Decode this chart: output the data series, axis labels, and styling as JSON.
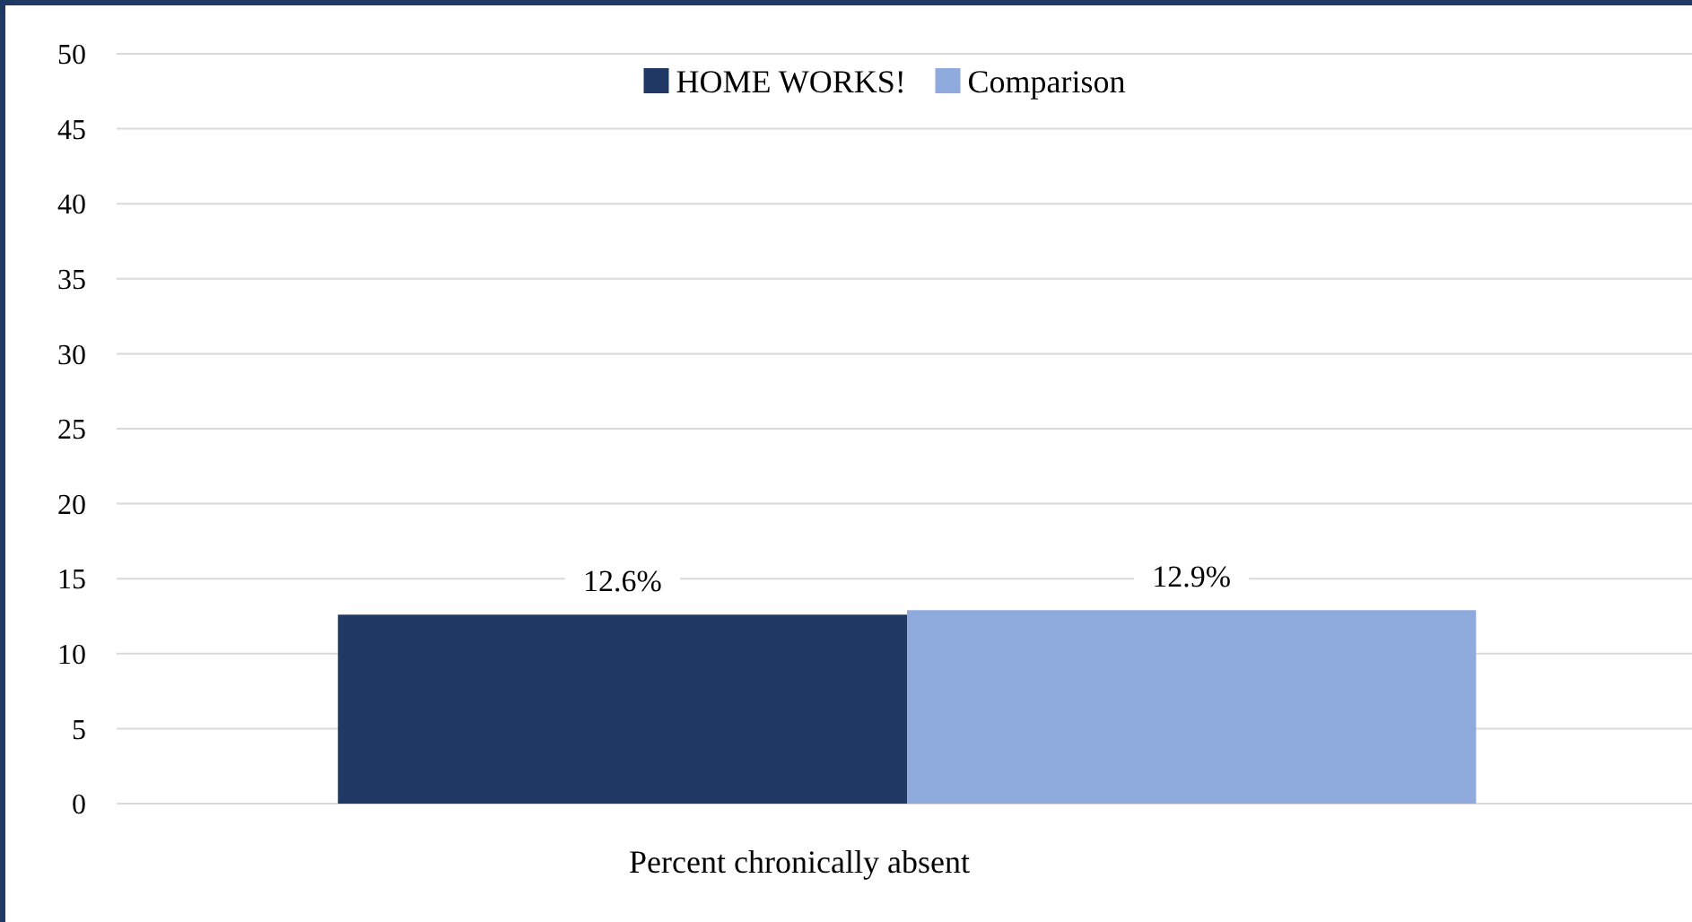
{
  "chart_data": {
    "type": "bar",
    "categories": [
      "Percent chronically absent"
    ],
    "series": [
      {
        "name": "HOME WORKS!",
        "color": "#203864",
        "values": [
          12.6
        ],
        "value_labels": [
          "12.6%"
        ]
      },
      {
        "name": "Comparison",
        "color": "#8faadc",
        "values": [
          12.9
        ],
        "value_labels": [
          "12.9%"
        ]
      }
    ],
    "ylim": [
      0,
      50
    ],
    "yticks": [
      0,
      5,
      10,
      15,
      20,
      25,
      30,
      35,
      40,
      45,
      50
    ],
    "grid": "y",
    "legend": "top"
  }
}
